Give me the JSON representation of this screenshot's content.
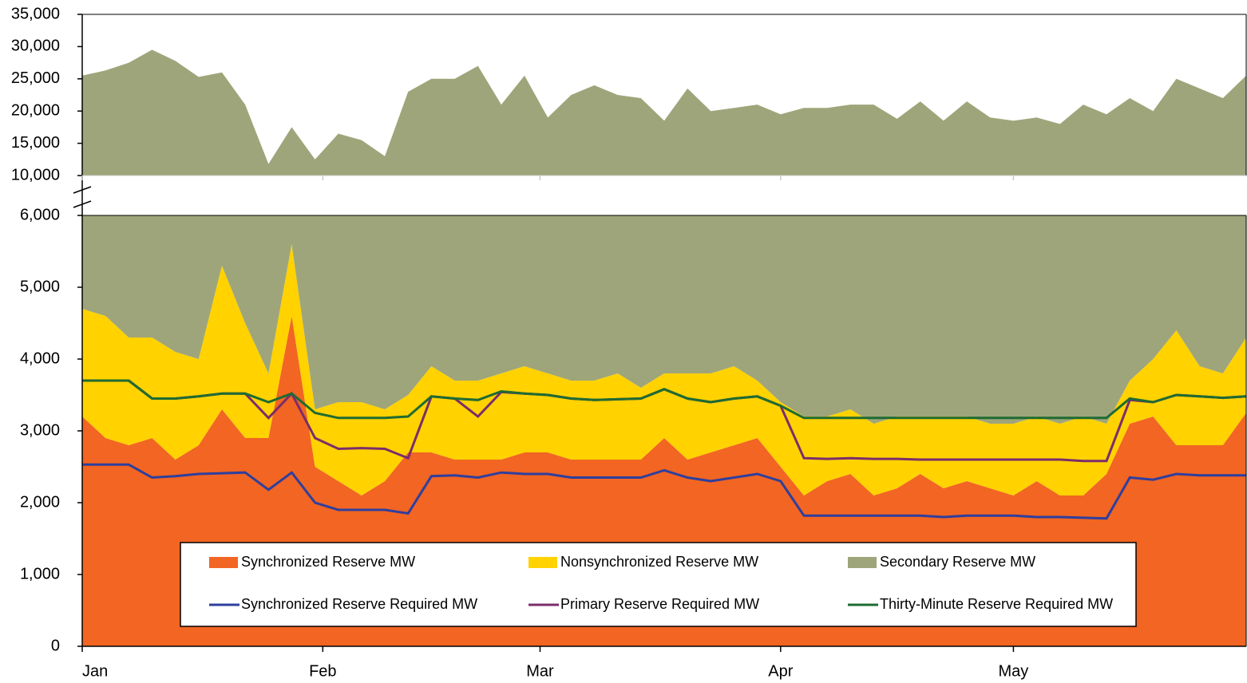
{
  "chart_data": {
    "type": "stacked_area_line",
    "x": [
      0,
      3,
      6,
      9,
      12,
      15,
      18,
      21,
      24,
      27,
      30,
      33,
      36,
      39,
      42,
      45,
      48,
      51,
      54,
      57,
      60,
      63,
      66,
      69,
      72,
      75,
      78,
      81,
      84,
      87,
      90,
      93,
      96,
      99,
      102,
      105,
      108,
      111,
      114,
      117,
      120,
      123,
      126,
      129,
      132,
      135,
      138,
      141,
      144,
      147,
      150
    ],
    "xlim": [
      0,
      150
    ],
    "xticks": [
      {
        "value": 0,
        "label": "Jan"
      },
      {
        "value": 31,
        "label": "Feb"
      },
      {
        "value": 59,
        "label": "Mar"
      },
      {
        "value": 90,
        "label": "Apr"
      },
      {
        "value": 120,
        "label": "May"
      }
    ],
    "ylim": [
      0,
      6000
    ],
    "yticks": [
      0,
      {
        "value": 1000,
        "label": "1,000"
      },
      {
        "value": 2000,
        "label": "2,000"
      },
      {
        "value": 3000,
        "label": "3,000"
      },
      {
        "value": 4000,
        "label": "4,000"
      },
      {
        "value": 5000,
        "label": "5,000"
      },
      {
        "value": 6000,
        "label": "6,000"
      }
    ],
    "ylim_upper": [
      10000,
      35000
    ],
    "yticks_upper": [
      {
        "value": 10000,
        "label": "10,000"
      },
      {
        "value": 15000,
        "label": "15,000"
      },
      {
        "value": 20000,
        "label": "20,000"
      },
      {
        "value": 25000,
        "label": "25,000"
      },
      {
        "value": 30000,
        "label": "30,000"
      },
      {
        "value": 35000,
        "label": "35,000"
      }
    ],
    "areas": [
      {
        "name": "Synchronized Reserve MW",
        "color": "#f26522",
        "values": [
          3200,
          2900,
          2800,
          2900,
          2600,
          2800,
          3300,
          2900,
          2900,
          4600,
          2500,
          2300,
          2100,
          2300,
          2700,
          2700,
          2600,
          2600,
          2600,
          2700,
          2700,
          2600,
          2600,
          2600,
          2600,
          2900,
          2600,
          2700,
          2800,
          2900,
          2500,
          2100,
          2300,
          2400,
          2100,
          2200,
          2400,
          2200,
          2300,
          2200,
          2100,
          2300,
          2100,
          2100,
          2400,
          3100,
          3200,
          2800,
          2800,
          2800,
          3250
        ]
      },
      {
        "name": "Nonsynchronized Reserve MW",
        "color": "#ffd200",
        "values": [
          1500,
          1700,
          1500,
          1400,
          1500,
          1200,
          2000,
          1600,
          900,
          1000,
          800,
          1100,
          1300,
          1000,
          800,
          1200,
          1100,
          1100,
          1200,
          1200,
          1100,
          1100,
          1100,
          1200,
          1000,
          900,
          1200,
          1100,
          1100,
          800,
          900,
          1100,
          900,
          900,
          1000,
          1000,
          800,
          1000,
          900,
          900,
          1000,
          900,
          1000,
          1100,
          700,
          600,
          800,
          1600,
          1100,
          1000,
          1050
        ]
      },
      {
        "name": "Secondary Reserve MW",
        "color": "#9fa57a",
        "values": [
          20800,
          21700,
          23200,
          25200,
          23700,
          21300,
          20700,
          16500,
          8000,
          11900,
          9200,
          13100,
          12100,
          9700,
          19500,
          21100,
          21300,
          23300,
          17200,
          21600,
          15200,
          18800,
          20300,
          18700,
          18400,
          14700,
          19700,
          16200,
          16600,
          17300,
          16100,
          17300,
          17300,
          17700,
          17900,
          15600,
          18300,
          15300,
          18300,
          15900,
          15400,
          15800,
          14900,
          17800,
          16400,
          18300,
          16000,
          20600,
          19600,
          18200,
          21200
        ]
      }
    ],
    "lines": [
      {
        "name": "Synchronized Reserve Required MW",
        "color": "#2e3f9e",
        "values": [
          2530,
          2530,
          2530,
          2350,
          2370,
          2400,
          2410,
          2420,
          2180,
          2420,
          2000,
          1900,
          1900,
          1900,
          1850,
          2370,
          2380,
          2350,
          2420,
          2400,
          2400,
          2350,
          2350,
          2350,
          2350,
          2450,
          2350,
          2300,
          2350,
          2400,
          2300,
          1820,
          1820,
          1820,
          1820,
          1820,
          1820,
          1800,
          1820,
          1820,
          1820,
          1800,
          1800,
          1790,
          1780,
          2350,
          2320,
          2400,
          2380,
          2380,
          2380
        ]
      },
      {
        "name": "Primary Reserve Required MW",
        "color": "#7b2d6b",
        "values": [
          3700,
          3700,
          3700,
          3450,
          3450,
          3480,
          3520,
          3520,
          3180,
          3520,
          2900,
          2750,
          2760,
          2750,
          2620,
          3480,
          3450,
          3200,
          3540,
          3520,
          3500,
          3450,
          3430,
          3440,
          3450,
          3580,
          3450,
          3400,
          3450,
          3480,
          3350,
          2620,
          2610,
          2620,
          2610,
          2610,
          2600,
          2600,
          2600,
          2600,
          2600,
          2600,
          2600,
          2580,
          2580,
          3430,
          3400,
          3500,
          3480,
          3460,
          3480
        ]
      },
      {
        "name": "Thirty-Minute Reserve Required MW",
        "color": "#1e6b32",
        "values": [
          3700,
          3700,
          3700,
          3450,
          3450,
          3480,
          3520,
          3520,
          3400,
          3520,
          3250,
          3180,
          3180,
          3180,
          3200,
          3480,
          3450,
          3430,
          3550,
          3520,
          3500,
          3450,
          3430,
          3440,
          3450,
          3580,
          3450,
          3400,
          3450,
          3480,
          3350,
          3180,
          3180,
          3180,
          3180,
          3180,
          3180,
          3180,
          3180,
          3180,
          3180,
          3180,
          3180,
          3180,
          3180,
          3450,
          3400,
          3500,
          3480,
          3460,
          3480
        ]
      }
    ]
  }
}
